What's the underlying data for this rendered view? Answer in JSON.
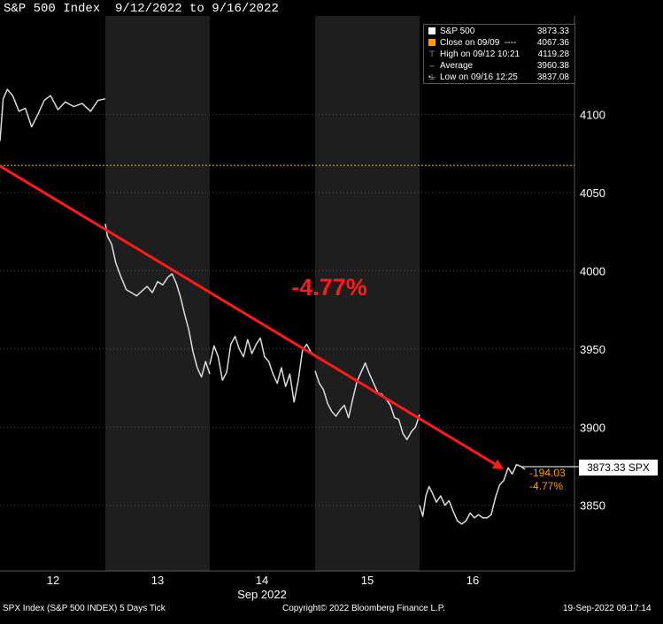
{
  "header": {
    "title": "S&P 500 Index  9/12/2022 to 9/16/2022"
  },
  "footer": {
    "left": "SPX Index (S&P 500 INDEX) 5 Days  Tick",
    "center": "Copyright© 2022 Bloomberg Finance L.P.",
    "right": "19-Sep-2022 09:17:14"
  },
  "legend": {
    "items": [
      {
        "symbol": "white-square",
        "label": "S&P 500",
        "value": "3873.33"
      },
      {
        "symbol": "orange-square",
        "label": "Close on 09/09  ----",
        "value": "4067.36"
      },
      {
        "symbol": "high-tick-icon",
        "label": "High on 09/12 10:21",
        "value": "4119.28"
      },
      {
        "symbol": "average-icon",
        "label": "Average",
        "value": "3960.38"
      },
      {
        "symbol": "low-tick-icon",
        "label": "Low on 09/16 12:25",
        "value": "3837.08"
      }
    ]
  },
  "annotation": {
    "text": "-4.77%",
    "color": "#ff1a1a"
  },
  "last_price": {
    "label": "3873.33 SPX",
    "change": "-194.03",
    "change_pct": "-4.77%"
  },
  "colors": {
    "background": "#000000",
    "session_shade": "#1e1e1e",
    "price_line": "#dcdcdc",
    "trend_arrow": "#ff1a1a",
    "prev_close": "#ff9c00",
    "text": "#ffffff"
  },
  "chart_data": {
    "type": "line",
    "title": "S&P 500 Index  9/12/2022 to 9/16/2022",
    "xlabel": "Sep 2022",
    "ylabel": "",
    "x_ticks": [
      "12",
      "13",
      "14",
      "15",
      "16"
    ],
    "y_ticks": [
      3850,
      3900,
      3950,
      4000,
      4050,
      4100
    ],
    "ylim": [
      3808,
      4163
    ],
    "xlim": [
      "2022-09-12 00:00",
      "2022-09-17 00:00"
    ],
    "shaded_sessions": [
      "2022-09-13",
      "2022-09-15"
    ],
    "reference_line": {
      "name": "Close on 09/09",
      "value": 4067.36
    },
    "series": [
      {
        "name": "S&P 500",
        "sessions": [
          {
            "date": "2022-09-12",
            "points": [
              [
                0.0,
                4083
              ],
              [
                0.03,
                4110
              ],
              [
                0.07,
                4116
              ],
              [
                0.12,
                4112
              ],
              [
                0.18,
                4102
              ],
              [
                0.24,
                4104
              ],
              [
                0.3,
                4092
              ],
              [
                0.36,
                4100
              ],
              [
                0.42,
                4109
              ],
              [
                0.48,
                4112
              ],
              [
                0.55,
                4103
              ],
              [
                0.62,
                4108
              ],
              [
                0.7,
                4105
              ],
              [
                0.78,
                4107
              ],
              [
                0.86,
                4102
              ],
              [
                0.93,
                4109
              ],
              [
                1.0,
                4110
              ]
            ]
          },
          {
            "date": "2022-09-13",
            "points": [
              [
                0.0,
                4030
              ],
              [
                0.02,
                4022
              ],
              [
                0.06,
                4017
              ],
              [
                0.1,
                4005
              ],
              [
                0.15,
                3996
              ],
              [
                0.2,
                3988
              ],
              [
                0.25,
                3986
              ],
              [
                0.3,
                3984
              ],
              [
                0.35,
                3987
              ],
              [
                0.4,
                3990
              ],
              [
                0.45,
                3986
              ],
              [
                0.5,
                3993
              ],
              [
                0.55,
                3991
              ],
              [
                0.6,
                3996
              ],
              [
                0.64,
                3998
              ],
              [
                0.68,
                3992
              ],
              [
                0.72,
                3983
              ],
              [
                0.76,
                3972
              ],
              [
                0.8,
                3962
              ],
              [
                0.84,
                3948
              ],
              [
                0.88,
                3938
              ],
              [
                0.92,
                3932
              ],
              [
                0.96,
                3942
              ],
              [
                1.0,
                3934
              ]
            ]
          },
          {
            "date": "2022-09-14",
            "points": [
              [
                0.0,
                3940
              ],
              [
                0.04,
                3952
              ],
              [
                0.08,
                3945
              ],
              [
                0.12,
                3930
              ],
              [
                0.16,
                3935
              ],
              [
                0.2,
                3953
              ],
              [
                0.24,
                3958
              ],
              [
                0.28,
                3950
              ],
              [
                0.32,
                3945
              ],
              [
                0.36,
                3956
              ],
              [
                0.4,
                3947
              ],
              [
                0.44,
                3953
              ],
              [
                0.48,
                3957
              ],
              [
                0.52,
                3945
              ],
              [
                0.56,
                3942
              ],
              [
                0.6,
                3934
              ],
              [
                0.64,
                3928
              ],
              [
                0.68,
                3938
              ],
              [
                0.72,
                3926
              ],
              [
                0.76,
                3934
              ],
              [
                0.8,
                3916
              ],
              [
                0.84,
                3930
              ],
              [
                0.88,
                3949
              ],
              [
                0.92,
                3953
              ],
              [
                0.96,
                3948
              ],
              [
                1.0,
                3946
              ]
            ]
          },
          {
            "date": "2022-09-15",
            "points": [
              [
                0.0,
                3936
              ],
              [
                0.04,
                3928
              ],
              [
                0.08,
                3924
              ],
              [
                0.12,
                3915
              ],
              [
                0.16,
                3910
              ],
              [
                0.2,
                3907
              ],
              [
                0.24,
                3911
              ],
              [
                0.28,
                3914
              ],
              [
                0.32,
                3906
              ],
              [
                0.36,
                3918
              ],
              [
                0.4,
                3929
              ],
              [
                0.44,
                3935
              ],
              [
                0.48,
                3941
              ],
              [
                0.52,
                3934
              ],
              [
                0.56,
                3928
              ],
              [
                0.6,
                3922
              ],
              [
                0.64,
                3921
              ],
              [
                0.68,
                3918
              ],
              [
                0.72,
                3914
              ],
              [
                0.76,
                3906
              ],
              [
                0.8,
                3905
              ],
              [
                0.84,
                3896
              ],
              [
                0.88,
                3892
              ],
              [
                0.92,
                3897
              ],
              [
                0.96,
                3900
              ],
              [
                1.0,
                3908
              ]
            ]
          },
          {
            "date": "2022-09-16",
            "points": [
              [
                0.0,
                3850
              ],
              [
                0.03,
                3843
              ],
              [
                0.06,
                3856
              ],
              [
                0.09,
                3862
              ],
              [
                0.12,
                3858
              ],
              [
                0.16,
                3852
              ],
              [
                0.2,
                3856
              ],
              [
                0.24,
                3850
              ],
              [
                0.28,
                3853
              ],
              [
                0.32,
                3846
              ],
              [
                0.36,
                3840
              ],
              [
                0.4,
                3838
              ],
              [
                0.44,
                3840
              ],
              [
                0.48,
                3845
              ],
              [
                0.52,
                3842
              ],
              [
                0.56,
                3844
              ],
              [
                0.6,
                3842
              ],
              [
                0.64,
                3842
              ],
              [
                0.68,
                3844
              ],
              [
                0.72,
                3855
              ],
              [
                0.76,
                3863
              ],
              [
                0.8,
                3866
              ],
              [
                0.84,
                3874
              ],
              [
                0.88,
                3870
              ],
              [
                0.92,
                3876
              ],
              [
                0.96,
                3875
              ],
              [
                1.0,
                3873
              ]
            ]
          }
        ]
      }
    ],
    "trend_arrow": {
      "from": [
        "2022-09-12 00:00",
        4067
      ],
      "to": [
        "2022-09-16 09:00",
        3873
      ]
    }
  }
}
